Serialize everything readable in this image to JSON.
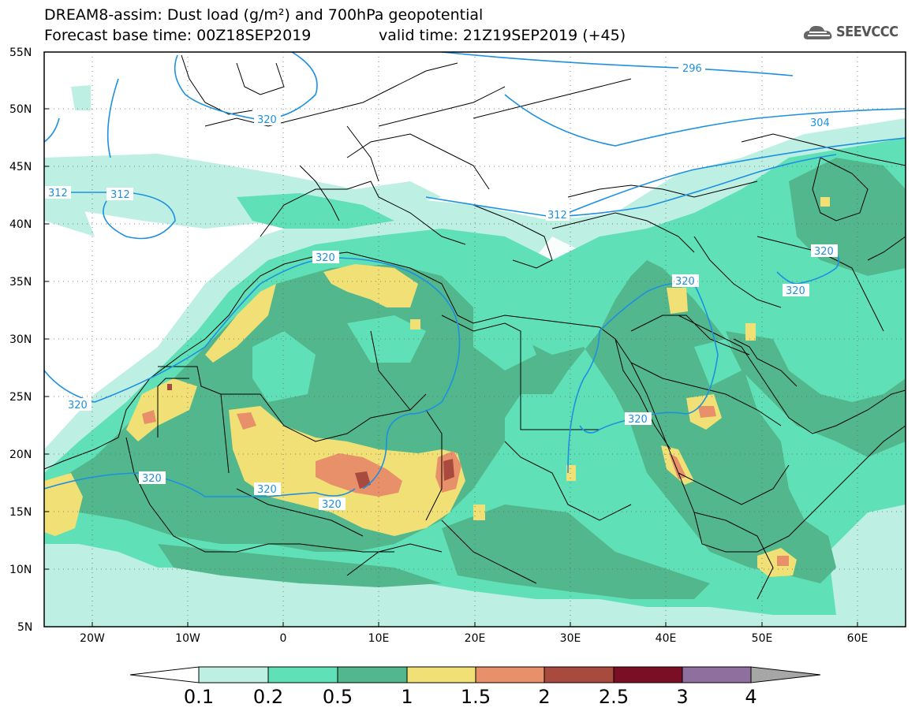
{
  "header": {
    "title_line1": "DREAM8-assim: Dust load (g/m²) and 700hPa geopotential",
    "title_line2": "Forecast base time: 00Z18SEP2019",
    "valid_time": "valid time: 21Z19SEP2019 (+45)",
    "logo_text": "SEEVCCC"
  },
  "map": {
    "lon_range": [
      -25,
      65
    ],
    "lat_range": [
      5,
      55
    ],
    "lat_ticks": [
      "55N",
      "50N",
      "45N",
      "40N",
      "35N",
      "30N",
      "25N",
      "20N",
      "15N",
      "10N",
      "5N"
    ],
    "lon_ticks": [
      "20W",
      "10W",
      "0",
      "10E",
      "20E",
      "30E",
      "40E",
      "50E",
      "60E"
    ],
    "contour_labels": [
      "296",
      "304",
      "312",
      "312",
      "312",
      "320",
      "320",
      "320",
      "320",
      "320",
      "320",
      "320",
      "320",
      "320",
      "320"
    ],
    "contour_color": "#1e90e0"
  },
  "colorbar": {
    "labels": [
      "0.1",
      "0.2",
      "0.5",
      "1",
      "1.5",
      "2",
      "2.5",
      "3",
      "4"
    ],
    "colors": [
      "#ffffff",
      "#bdefe3",
      "#5fe0b7",
      "#52b78c",
      "#f1e075",
      "#e8906a",
      "#a84a3e",
      "#7a0e25",
      "#8e6fa0",
      "#a6a6a6"
    ]
  }
}
